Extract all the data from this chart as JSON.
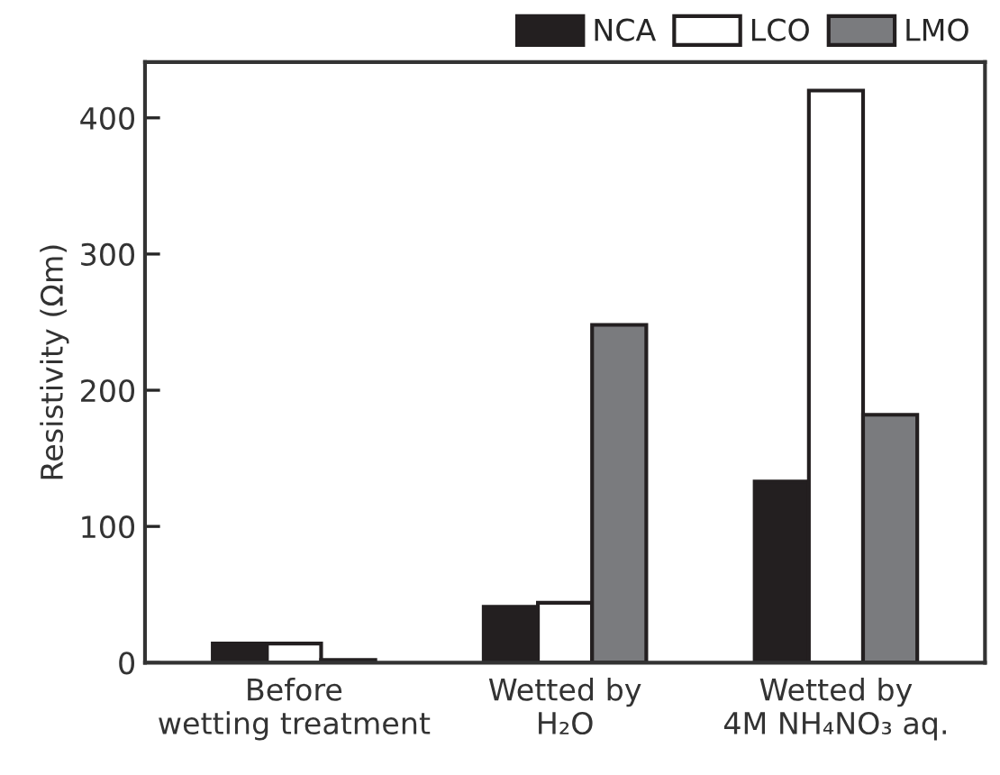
{
  "chart_data": {
    "type": "bar",
    "ylabel": "Resistivity (Ωm)",
    "categories": [
      "Before\nwetting treatment",
      "Wetted by\nH₂O",
      "Wetted by\n4M NH₄NO₃ aq."
    ],
    "series": [
      {
        "name": "NCA",
        "color": "#231f20",
        "values": [
          14,
          41,
          133
        ]
      },
      {
        "name": "LCO",
        "color": "#ffffff",
        "values": [
          14,
          44,
          420
        ]
      },
      {
        "name": "LMO",
        "color": "#7a7b7e",
        "values": [
          2,
          248,
          182
        ]
      }
    ],
    "ylim": [
      0,
      441
    ],
    "yticks": [
      0,
      100,
      200,
      300,
      400
    ],
    "grid": false,
    "legend": "top right"
  }
}
